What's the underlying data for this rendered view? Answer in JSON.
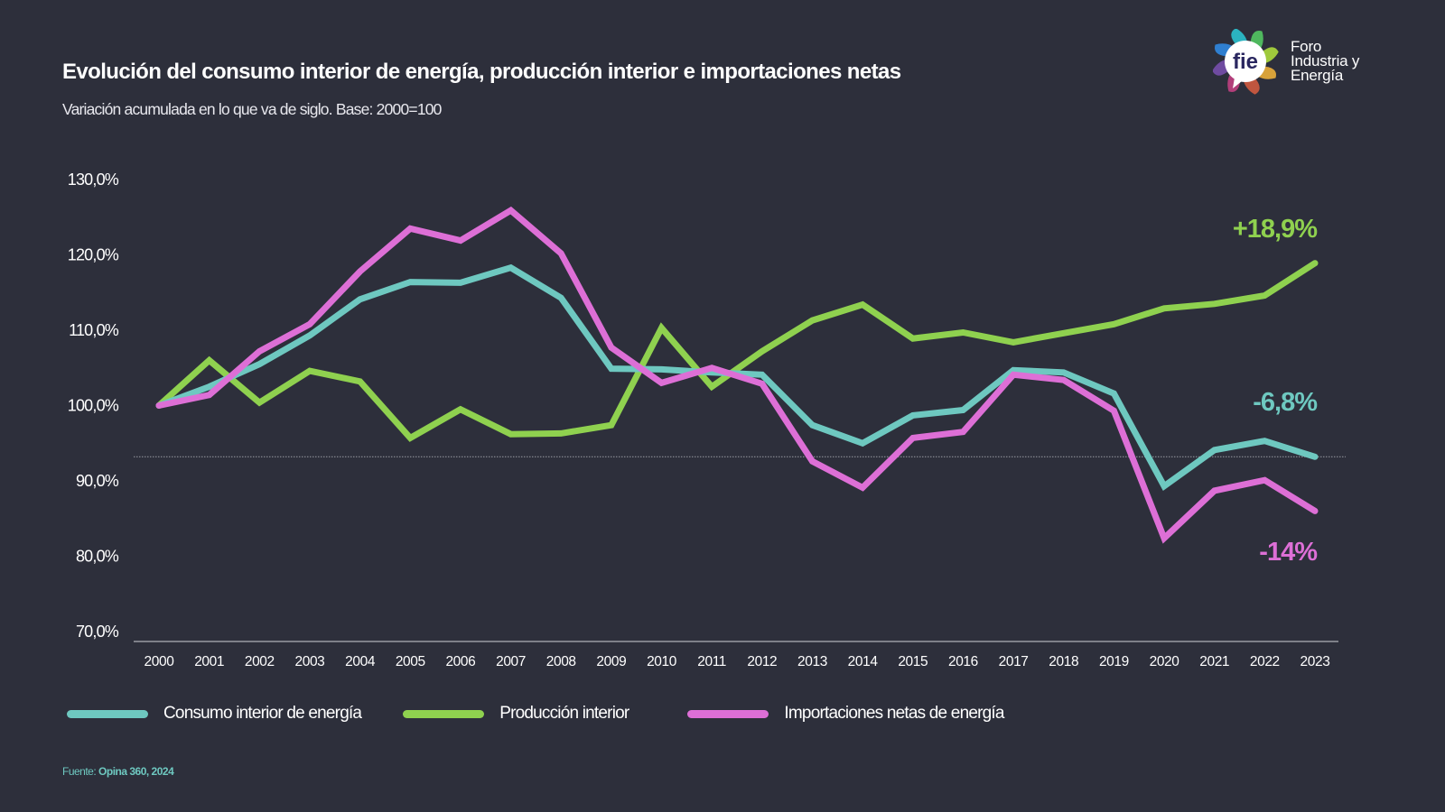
{
  "header": {
    "title": "Evolución del consumo interior de energía, producción interior e importaciones netas",
    "subtitle": "Variación acumulada en lo que va de siglo. Base: 2000=100"
  },
  "logo": {
    "mark": "fie",
    "lines": [
      "Foro",
      "Industria y",
      "Energía"
    ],
    "petal_colors": [
      "#2bb3c0",
      "#4fb85e",
      "#9fc93c",
      "#d8a23a",
      "#c0563f",
      "#b23e7a",
      "#6f4ba0",
      "#2f7fd0"
    ]
  },
  "footer": {
    "source_prefix": "Fuente: ",
    "source": "Opina 360, 2024"
  },
  "chart_data": {
    "type": "line",
    "title": "Evolución del consumo interior de energía, producción interior e importaciones netas",
    "subtitle": "Variación acumulada en lo que va de siglo. Base: 2000=100",
    "xlabel": "",
    "ylabel": "",
    "x": [
      "2000",
      "2001",
      "2002",
      "2003",
      "2004",
      "2005",
      "2006",
      "2007",
      "2008",
      "2009",
      "2010",
      "2011",
      "2012",
      "2013",
      "2014",
      "2015",
      "2016",
      "2017",
      "2018",
      "2019",
      "2020",
      "2021",
      "2022",
      "2023"
    ],
    "ylim": [
      70,
      130
    ],
    "yticks": [
      130,
      120,
      110,
      100,
      90,
      80,
      70
    ],
    "ytick_labels": [
      "130,0%",
      "120,0%",
      "110,0%",
      "100,0%",
      "90,0%",
      "80,0%",
      "70,0%"
    ],
    "grid": false,
    "reference_line": 93.2,
    "legend_position": "bottom-left",
    "series": [
      {
        "name": "Consumo interior de energía",
        "color": "#6ec8c0",
        "values": [
          100,
          102.5,
          105.5,
          109.3,
          114.1,
          116.4,
          116.3,
          118.3,
          114.3,
          104.9,
          104.8,
          104.4,
          104.1,
          97.4,
          95.0,
          98.7,
          99.4,
          104.7,
          104.4,
          101.6,
          89.3,
          94.1,
          95.3,
          93.2
        ],
        "end_label": "-6,8%"
      },
      {
        "name": "Producción interior",
        "color": "#8fd14f",
        "values": [
          100,
          106.0,
          100.4,
          104.6,
          103.2,
          95.7,
          99.5,
          96.2,
          96.3,
          97.4,
          110.3,
          102.5,
          107.2,
          111.3,
          113.4,
          108.9,
          109.7,
          108.4,
          109.6,
          110.8,
          112.9,
          113.5,
          114.6,
          118.9
        ],
        "end_label": "+18,9%"
      },
      {
        "name": "Importaciones netas de energía",
        "color": "#dd6fd6",
        "values": [
          100,
          101.4,
          107.2,
          110.8,
          117.8,
          123.5,
          121.9,
          125.9,
          120.2,
          107.7,
          103.0,
          105.0,
          102.9,
          92.6,
          89.1,
          95.7,
          96.5,
          104.1,
          103.4,
          99.3,
          82.4,
          88.7,
          90.1,
          86.0
        ],
        "end_label": "-14%"
      }
    ]
  }
}
